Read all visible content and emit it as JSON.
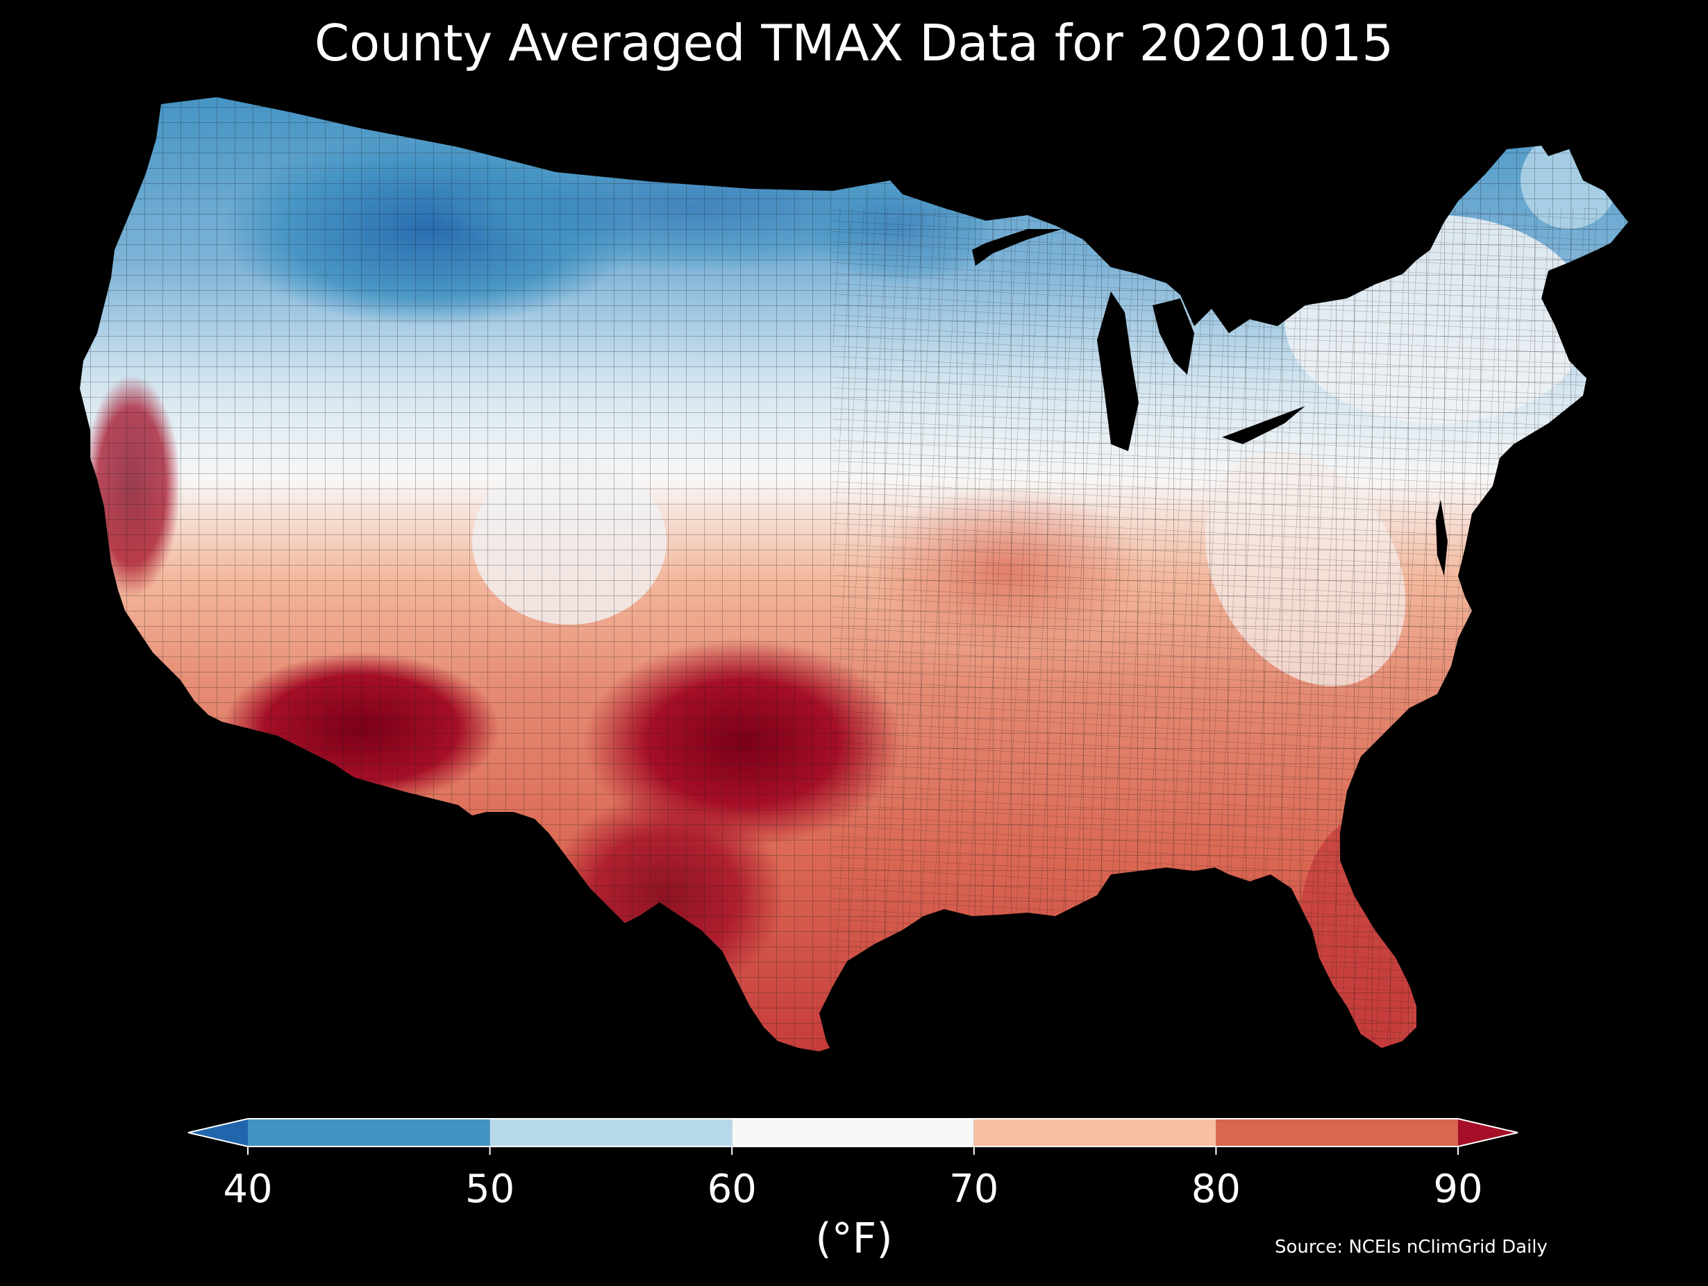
{
  "title": "County Averaged TMAX Data for 20201015",
  "source": "Source: NCEIs nClimGrid Daily",
  "colorbar": {
    "unit_label": "(°F)",
    "ticks": [
      "40",
      "50",
      "60",
      "70",
      "80",
      "90"
    ],
    "bins": [
      {
        "min": 40,
        "max": 50,
        "color": "#4393c3"
      },
      {
        "min": 50,
        "max": 60,
        "color": "#b7d8ea"
      },
      {
        "min": 60,
        "max": 70,
        "color": "#f7f7f7"
      },
      {
        "min": 70,
        "max": 80,
        "color": "#f7bfa3"
      },
      {
        "min": 80,
        "max": 90,
        "color": "#da6652"
      }
    ],
    "under_color": "#2166ac",
    "over_color": "#a50f27",
    "extend": "both"
  },
  "map": {
    "background": "#000000",
    "region": "Contiguous United States",
    "variable": "TMAX",
    "date": "20201015",
    "colormap": "RdBu_r",
    "county_borders": true
  },
  "colors": {
    "coolest": "#2166ac",
    "cool": "#4393c3",
    "light_cool": "#b7d8ea",
    "neutral": "#f7f7f7",
    "light_warm": "#f7bfa3",
    "warm": "#da6652",
    "hottest": "#a50f27",
    "hottest_dark": "#7a0017"
  }
}
